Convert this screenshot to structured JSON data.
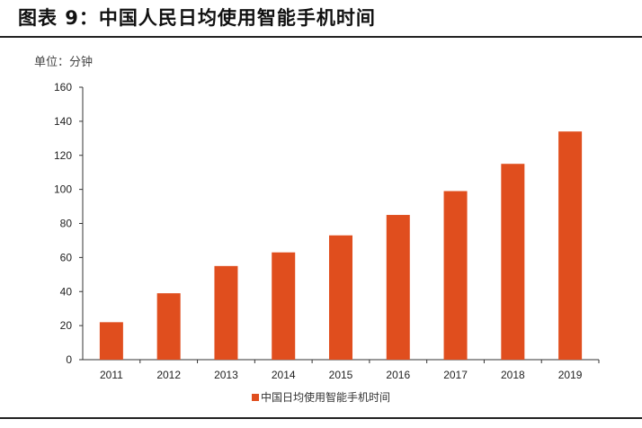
{
  "header": {
    "title": "图表 9：中国人民日均使用智能手机时间"
  },
  "colors": {
    "bar": "#E04E1E",
    "axis": "#333333"
  },
  "chart_data": {
    "type": "bar",
    "unit_label": "单位：分钟",
    "categories": [
      "2011",
      "2012",
      "2013",
      "2014",
      "2015",
      "2016",
      "2017",
      "2018",
      "2019"
    ],
    "series": [
      {
        "name": "中国日均使用智能手机时间",
        "values": [
          22,
          39,
          55,
          63,
          73,
          85,
          99,
          115,
          134
        ]
      }
    ],
    "ylim": [
      0,
      160
    ],
    "yticks": [
      0,
      20,
      40,
      60,
      80,
      100,
      120,
      140,
      160
    ],
    "grid": false,
    "legend_position": "bottom"
  }
}
